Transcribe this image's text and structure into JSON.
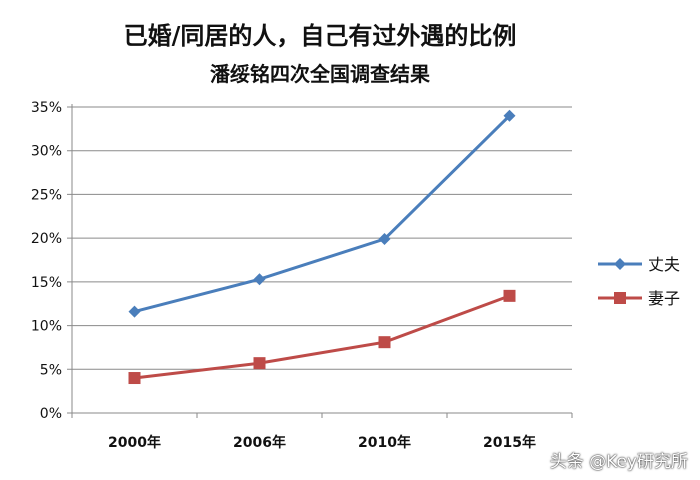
{
  "chart_data": {
    "type": "line",
    "title": "已婚/同居的人，自己有过外遇的比例",
    "subtitle": "潘绥铭四次全国调查结果",
    "categories": [
      "2000年",
      "2006年",
      "2010年",
      "2015年"
    ],
    "series": [
      {
        "name": "丈夫",
        "values": [
          11.6,
          15.3,
          19.9,
          34.0
        ],
        "color": "#4a7ebb",
        "marker": "diamond"
      },
      {
        "name": "妻子",
        "values": [
          4.0,
          5.7,
          8.1,
          13.4
        ],
        "color": "#be4b48",
        "marker": "square"
      }
    ],
    "yticks": [
      "0%",
      "5%",
      "10%",
      "15%",
      "20%",
      "25%",
      "30%",
      "35%"
    ],
    "ylim": [
      0,
      35
    ],
    "grid": true,
    "legend": "right"
  },
  "watermark": "头条 @Key研究所"
}
